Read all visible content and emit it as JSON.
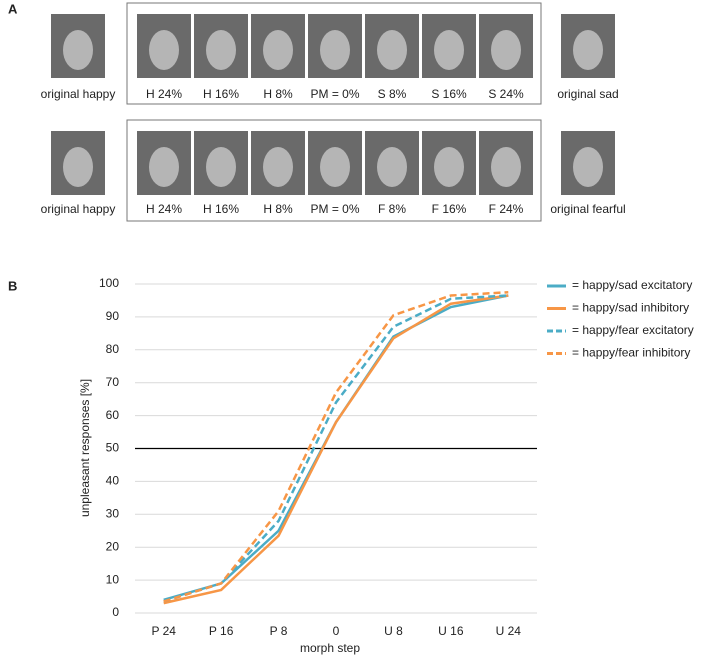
{
  "panel_a": {
    "label": "A",
    "rows": [
      {
        "left": "original happy",
        "steps": [
          "H 24%",
          "H 16%",
          "H 8%",
          "PM = 0%",
          "S 8%",
          "S 16%",
          "S 24%"
        ],
        "right": "original sad"
      },
      {
        "left": "original happy",
        "steps": [
          "H 24%",
          "H 16%",
          "H 8%",
          "PM = 0%",
          "F 8%",
          "F 16%",
          "F 24%"
        ],
        "right": "original fearful"
      }
    ]
  },
  "panel_b_label": "B",
  "chart_data": {
    "type": "line",
    "x_label": "morph step",
    "y_label": "unpleasant responses [%]",
    "categories": [
      "P 24",
      "P 16",
      "P 8",
      "0",
      "U 8",
      "U 16",
      "U 24"
    ],
    "series": [
      {
        "name": "= happy/sad excitatory",
        "color": "#4bacc6",
        "dashed": false,
        "values": [
          4,
          9,
          25,
          58,
          84,
          93,
          96.5
        ]
      },
      {
        "name": "= happy/sad inhibitory",
        "color": "#f79646",
        "dashed": false,
        "values": [
          3,
          7,
          23.5,
          58,
          83.5,
          94,
          96.5
        ]
      },
      {
        "name": "= happy/fear excitatory",
        "color": "#4bacc6",
        "dashed": true,
        "values": [
          3.5,
          9,
          28,
          64,
          87,
          95.5,
          96.5
        ]
      },
      {
        "name": "= happy/fear inhibitory",
        "color": "#f79646",
        "dashed": true,
        "values": [
          3.5,
          9,
          31,
          67,
          90.5,
          96.5,
          97.5
        ]
      }
    ],
    "reference_line": 50,
    "ylim": [
      0,
      100
    ],
    "yticks": [
      0,
      10,
      20,
      30,
      40,
      50,
      60,
      70,
      80,
      90,
      100
    ],
    "grid": true
  }
}
